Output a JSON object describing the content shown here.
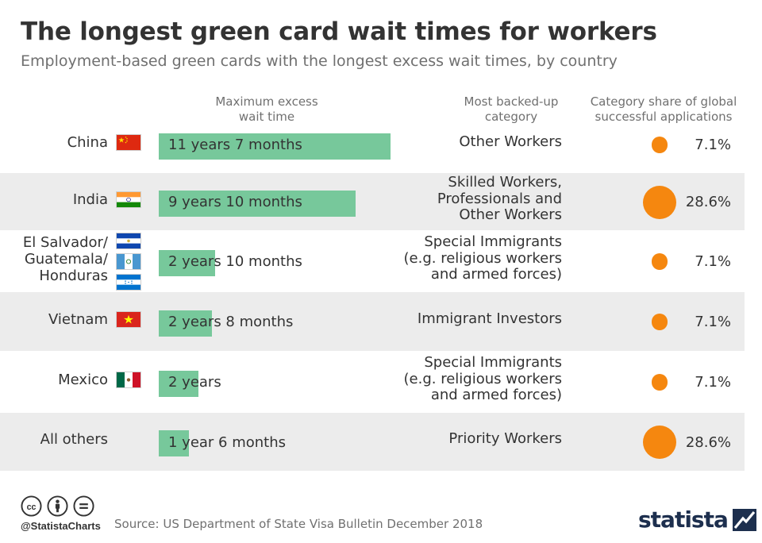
{
  "header": {
    "title": "The longest green card wait times for workers",
    "subtitle": "Employment-based green cards with the longest excess wait times, by country"
  },
  "columns": {
    "wait": [
      "Maximum excess",
      "wait time"
    ],
    "category": [
      "Most backed-up",
      "category"
    ],
    "share": [
      "Category share of global",
      "successful applications"
    ]
  },
  "chart_data": {
    "type": "table",
    "value_unit": "months",
    "categories": [
      "China",
      "India",
      "El Salvador/ Guatemala/ Honduras",
      "Vietnam",
      "Mexico",
      "All others"
    ],
    "wait_labels": [
      "11 years 7 months",
      "9 years 10 months",
      "2 years 10 months",
      "2 years 8 months",
      "2 years",
      "1 year 6 months"
    ],
    "wait_months": [
      139,
      118,
      34,
      32,
      24,
      18
    ],
    "most_backed_up_category": [
      [
        "Other Workers"
      ],
      [
        "Skilled Workers,",
        "Professionals and",
        "Other Workers"
      ],
      [
        "Special Immigrants",
        "(e.g. religious workers",
        "and armed forces)"
      ],
      [
        "Immigrant Investors"
      ],
      [
        "Special Immigrants",
        "(e.g. religious workers",
        "and armed forces)"
      ],
      [
        "Priority Workers"
      ]
    ],
    "share_labels": [
      "7.1%",
      "28.6%",
      "7.1%",
      "7.1%",
      "7.1%",
      "28.6%"
    ],
    "share_values": [
      7.1,
      28.6,
      7.1,
      7.1,
      7.1,
      28.6
    ],
    "country_lines": [
      [
        "China"
      ],
      [
        "India"
      ],
      [
        "El Salvador/",
        "Guatemala/",
        "Honduras"
      ],
      [
        "Vietnam"
      ],
      [
        "Mexico"
      ],
      [
        "All others"
      ]
    ],
    "flags": [
      [
        "china-flag"
      ],
      [
        "india-flag"
      ],
      [
        "el-salvador-flag",
        "guatemala-flag",
        "honduras-flag"
      ],
      [
        "vietnam-flag"
      ],
      [
        "mexico-flag"
      ],
      []
    ]
  },
  "colors": {
    "bar": "#77c89b",
    "bubble": "#f5870f",
    "row_shade": "#ececec"
  },
  "footer": {
    "handle": "@StatistaCharts",
    "source": "Source: US Department of State Visa Bulletin December 2018",
    "logo": "statista",
    "icons": [
      "cc-icon",
      "attribution-icon",
      "no-derivatives-icon"
    ]
  }
}
